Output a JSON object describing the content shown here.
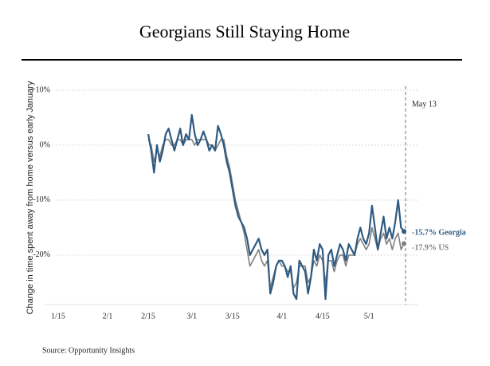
{
  "chart_data": {
    "type": "line",
    "title": "Georgians Still Staying Home",
    "y_label": "Change in time spent away from home versus early January",
    "source": "Source: Opportunity Insights",
    "annotation": "May 13",
    "categories": [
      "1/15",
      null,
      null,
      null,
      null,
      null,
      null,
      null,
      null,
      null,
      null,
      null,
      null,
      null,
      null,
      null,
      null,
      "2/1",
      null,
      null,
      null,
      null,
      null,
      null,
      null,
      null,
      null,
      null,
      null,
      null,
      null,
      "2/15",
      null,
      null,
      null,
      null,
      null,
      null,
      null,
      null,
      null,
      null,
      null,
      null,
      null,
      null,
      "3/1",
      null,
      null,
      null,
      null,
      null,
      null,
      null,
      null,
      null,
      null,
      null,
      null,
      null,
      "3/15",
      null,
      null,
      null,
      null,
      null,
      null,
      null,
      null,
      null,
      null,
      null,
      null,
      null,
      null,
      null,
      null,
      "4/1",
      null,
      null,
      null,
      null,
      null,
      null,
      null,
      null,
      null,
      null,
      null,
      null,
      null,
      "4/15",
      null,
      null,
      null,
      null,
      null,
      null,
      null,
      null,
      null,
      null,
      null,
      null,
      null,
      null,
      null,
      "5/1",
      null,
      null,
      null,
      null,
      null,
      null,
      null,
      null,
      null,
      null,
      null,
      null
    ],
    "series": [
      {
        "color": "#7f7f7f",
        "values": [
          null,
          null,
          null,
          null,
          null,
          null,
          null,
          null,
          null,
          null,
          null,
          null,
          null,
          null,
          null,
          null,
          null,
          null,
          null,
          null,
          null,
          null,
          null,
          null,
          null,
          null,
          null,
          null,
          null,
          null,
          null,
          1,
          0,
          -3,
          -1,
          -2,
          0,
          1,
          1,
          0,
          0,
          1,
          1,
          0,
          1,
          1,
          1,
          0,
          1,
          1,
          1,
          1,
          0,
          0,
          -1,
          0,
          1,
          1,
          -2,
          -4,
          -7,
          -10,
          -12,
          -14,
          -16,
          -19,
          -22,
          -21,
          -20,
          -19,
          -21,
          -22,
          -21,
          -26,
          -24,
          -22,
          -21,
          -22,
          -22,
          -23,
          -23,
          -26,
          -25,
          -22,
          -22,
          -22,
          -25,
          -24,
          -21,
          -22,
          -20,
          -21,
          -25,
          -21,
          -21,
          -23,
          -21,
          -20,
          -20,
          -22,
          -20,
          -20,
          -20,
          -18,
          -17,
          -18,
          -19,
          -18,
          -15,
          -17,
          -19,
          -17,
          -16,
          -18,
          -17,
          -19,
          -17,
          -16,
          -19,
          -17.9
        ],
        "value_labels": [
          null,
          null,
          null,
          null,
          null,
          null,
          null,
          null,
          null,
          null,
          null,
          null,
          null,
          null,
          null,
          null,
          null,
          null,
          null,
          null,
          null,
          null,
          null,
          null,
          null,
          null,
          null,
          null,
          null,
          null,
          null,
          null,
          null,
          null,
          null,
          null,
          null,
          null,
          null,
          null,
          null,
          null,
          null,
          null,
          null,
          null,
          null,
          null,
          null,
          null,
          null,
          null,
          null,
          null,
          null,
          null,
          null,
          null,
          null,
          null,
          null,
          null,
          null,
          null,
          null,
          null,
          null,
          null,
          null,
          null,
          null,
          null,
          null,
          null,
          null,
          null,
          null,
          null,
          null,
          null,
          null,
          null,
          null,
          null,
          null,
          null,
          null,
          null,
          null,
          null,
          null,
          null,
          null,
          null,
          null,
          null,
          null,
          null,
          null,
          null,
          null,
          null,
          null,
          null,
          null,
          null,
          null,
          null,
          null,
          null,
          null,
          null,
          null,
          null,
          null,
          null,
          null,
          null,
          null,
          "-17.9% US"
        ]
      },
      {
        "color": "#2e5a82",
        "values": [
          null,
          null,
          null,
          null,
          null,
          null,
          null,
          null,
          null,
          null,
          null,
          null,
          null,
          null,
          null,
          null,
          null,
          null,
          null,
          null,
          null,
          null,
          null,
          null,
          null,
          null,
          null,
          null,
          null,
          null,
          null,
          2,
          -1,
          -5,
          0,
          -3,
          -1,
          2,
          3,
          1,
          -1,
          1,
          3,
          0,
          2,
          1,
          5.5,
          2,
          0,
          1,
          2.5,
          1,
          -1,
          0,
          -1,
          3.5,
          2,
          0,
          -3,
          -5,
          -8,
          -11,
          -13,
          -14,
          -15,
          -17,
          -20,
          -19,
          -18,
          -17,
          -19,
          -20,
          -19,
          -27,
          -25,
          -22,
          -21,
          -21,
          -22,
          -24,
          -22,
          -27,
          -28,
          -21,
          -22,
          -23,
          -27,
          -24,
          -19,
          -21,
          -18,
          -19,
          -28,
          -20,
          -19,
          -22,
          -20,
          -18,
          -19,
          -21,
          -18,
          -19,
          -20,
          -17,
          -15,
          -17,
          -18,
          -16,
          -11,
          -15,
          -19,
          -16,
          -13,
          -17,
          -15,
          -17,
          -14,
          -10,
          -15,
          -15.7
        ],
        "value_labels": [
          null,
          null,
          null,
          null,
          null,
          null,
          null,
          null,
          null,
          null,
          null,
          null,
          null,
          null,
          null,
          null,
          null,
          null,
          null,
          null,
          null,
          null,
          null,
          null,
          null,
          null,
          null,
          null,
          null,
          null,
          null,
          null,
          null,
          null,
          null,
          null,
          null,
          null,
          null,
          null,
          null,
          null,
          null,
          null,
          null,
          null,
          null,
          null,
          null,
          null,
          null,
          null,
          null,
          null,
          null,
          null,
          null,
          null,
          null,
          null,
          null,
          null,
          null,
          null,
          null,
          null,
          null,
          null,
          null,
          null,
          null,
          null,
          null,
          null,
          null,
          null,
          null,
          null,
          null,
          null,
          null,
          null,
          null,
          null,
          null,
          null,
          null,
          null,
          null,
          null,
          null,
          null,
          null,
          null,
          null,
          null,
          null,
          null,
          null,
          null,
          null,
          null,
          null,
          null,
          null,
          null,
          null,
          null,
          null,
          null,
          null,
          null,
          null,
          null,
          null,
          null,
          null,
          null,
          null,
          "-15.7% Georgia"
        ]
      }
    ],
    "ylim": [
      -29,
      10
    ],
    "yticks": [
      {
        "value": 10,
        "label": "+10%"
      },
      {
        "value": 0,
        "label": "0%"
      },
      {
        "value": -10,
        "label": "-10%"
      },
      {
        "value": -20,
        "label": "-20%"
      }
    ],
    "grid": true
  }
}
